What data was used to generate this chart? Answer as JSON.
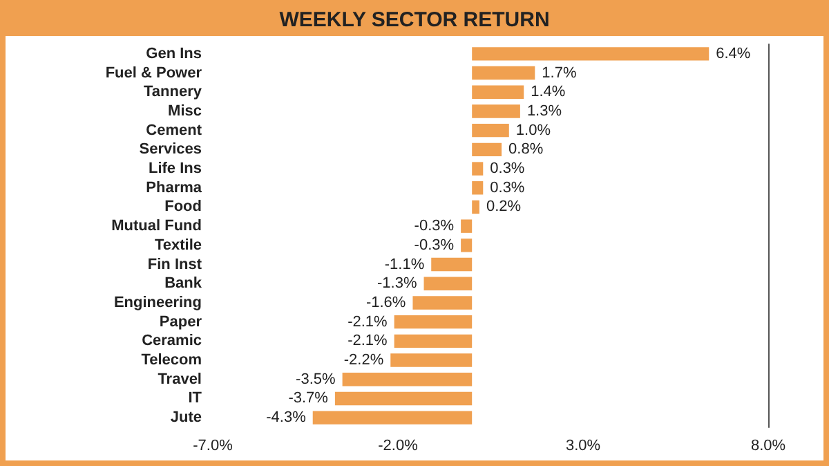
{
  "chart_data": {
    "type": "bar",
    "orientation": "horizontal",
    "title": "WEEKLY SECTOR RETURN",
    "categories": [
      "Gen Ins",
      "Fuel & Power",
      "Tannery",
      "Misc",
      "Cement",
      "Services",
      "Life Ins",
      "Pharma",
      "Food",
      "Mutual Fund",
      "Textile",
      "Fin Inst",
      "Bank",
      "Engineering",
      "Paper",
      "Ceramic",
      "Telecom",
      "Travel",
      "IT",
      "Jute"
    ],
    "values": [
      6.4,
      1.7,
      1.4,
      1.3,
      1.0,
      0.8,
      0.3,
      0.3,
      0.2,
      -0.3,
      -0.3,
      -1.1,
      -1.3,
      -1.6,
      -2.1,
      -2.1,
      -2.2,
      -3.5,
      -3.7,
      -4.3
    ],
    "value_labels": [
      "6.4%",
      "1.7%",
      "1.4%",
      "1.3%",
      "1.0%",
      "0.8%",
      "0.3%",
      "0.3%",
      "0.2%",
      "-0.3%",
      "-0.3%",
      "-1.1%",
      "-1.3%",
      "-1.6%",
      "-2.1%",
      "-2.1%",
      "-2.2%",
      "-3.5%",
      "-3.7%",
      "-4.3%"
    ],
    "color": "#f0a050",
    "xlim": [
      -7,
      8
    ],
    "xticks": [
      {
        "value": -7,
        "label": "-7.0%"
      },
      {
        "value": -2,
        "label": "-2.0%"
      },
      {
        "value": 3,
        "label": "3.0%"
      },
      {
        "value": 8,
        "label": "8.0%"
      }
    ],
    "grid": false
  }
}
